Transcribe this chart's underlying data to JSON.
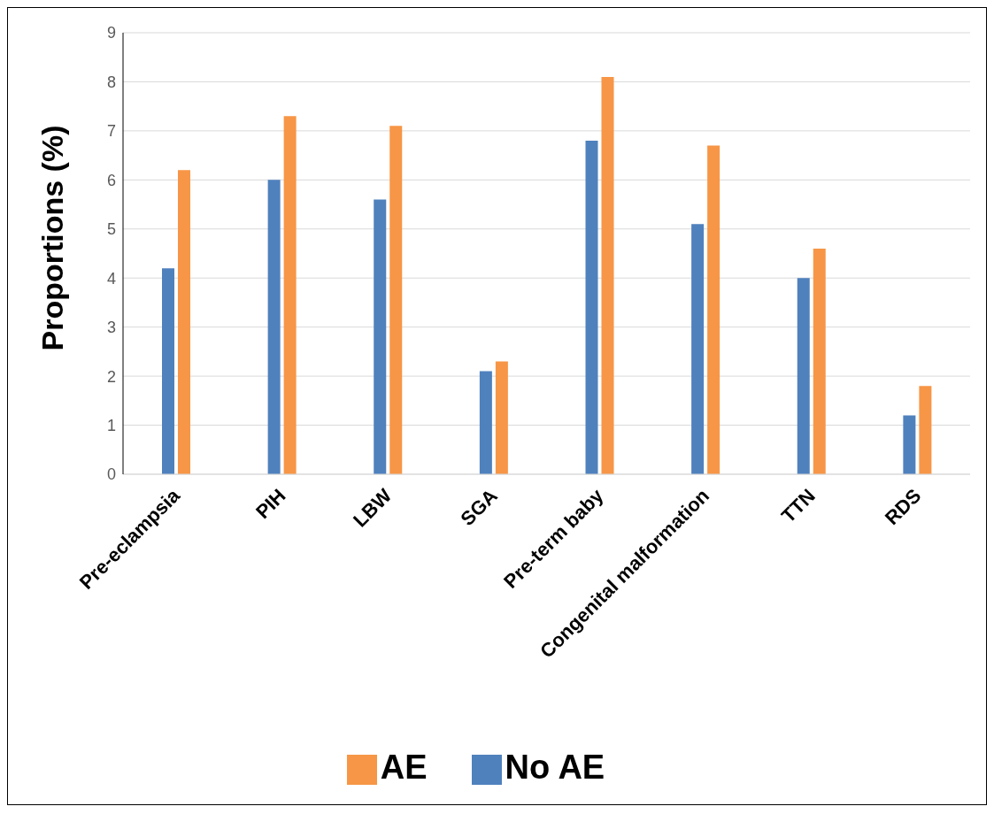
{
  "chart_data": {
    "type": "bar",
    "ylabel": "Proportions (%)",
    "categories": [
      "Pre-eclampsia",
      "PIH",
      "LBW",
      "SGA",
      "Pre-term baby",
      "Congenital malformation",
      "TTN",
      "RDS"
    ],
    "series": [
      {
        "name": "No AE",
        "color": "#4f81bd",
        "values": [
          4.2,
          6.0,
          5.6,
          2.1,
          6.8,
          5.1,
          4.0,
          1.2
        ]
      },
      {
        "name": "AE",
        "color": "#f79646",
        "values": [
          6.2,
          7.3,
          7.1,
          2.3,
          8.1,
          6.7,
          4.6,
          1.8
        ]
      }
    ],
    "ylim": [
      0,
      9
    ],
    "yticks": [
      0,
      1,
      2,
      3,
      4,
      5,
      6,
      7,
      8,
      9
    ],
    "grid": "y",
    "legend": "bottom"
  }
}
